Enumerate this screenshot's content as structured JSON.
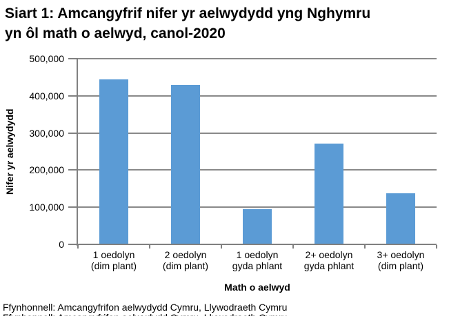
{
  "title": {
    "line1": "Siart 1: Amcangyfrif nifer yr aelwydydd yng Nghymru",
    "line2": "yn ôl math o aelwyd, canol-2020"
  },
  "chart_data": {
    "type": "bar",
    "title": "Siart 1: Amcangyfrif nifer yr aelwydydd yng Nghymru yn ôl math o aelwyd, canol-2020",
    "categories": [
      "1 oedolyn\n(dim plant)",
      "2 oedolyn\n(dim plant)",
      "1 oedolyn\ngyda phlant",
      "2+ oedolyn\ngyda phlant",
      "3+ oedolyn\n(dim plant)"
    ],
    "values": [
      445000,
      430000,
      95000,
      271000,
      137000
    ],
    "xlabel": "Math o aelwyd",
    "ylabel": "Nifer yr aelwydydd",
    "ylim": [
      0,
      500000
    ],
    "ytick_step": 100000,
    "ytick_labels": [
      "0",
      "100,000",
      "200,000",
      "300,000",
      "400,000",
      "500,000"
    ],
    "grid": true,
    "legend": false,
    "bar_color": "#5B9BD5",
    "axis_color": "#808080",
    "gridline_color": "#898989"
  },
  "footer": {
    "source": "Ffynhonnell: Amcangyfrifon aelwydydd Cymru, Llywodraeth Cymru"
  }
}
